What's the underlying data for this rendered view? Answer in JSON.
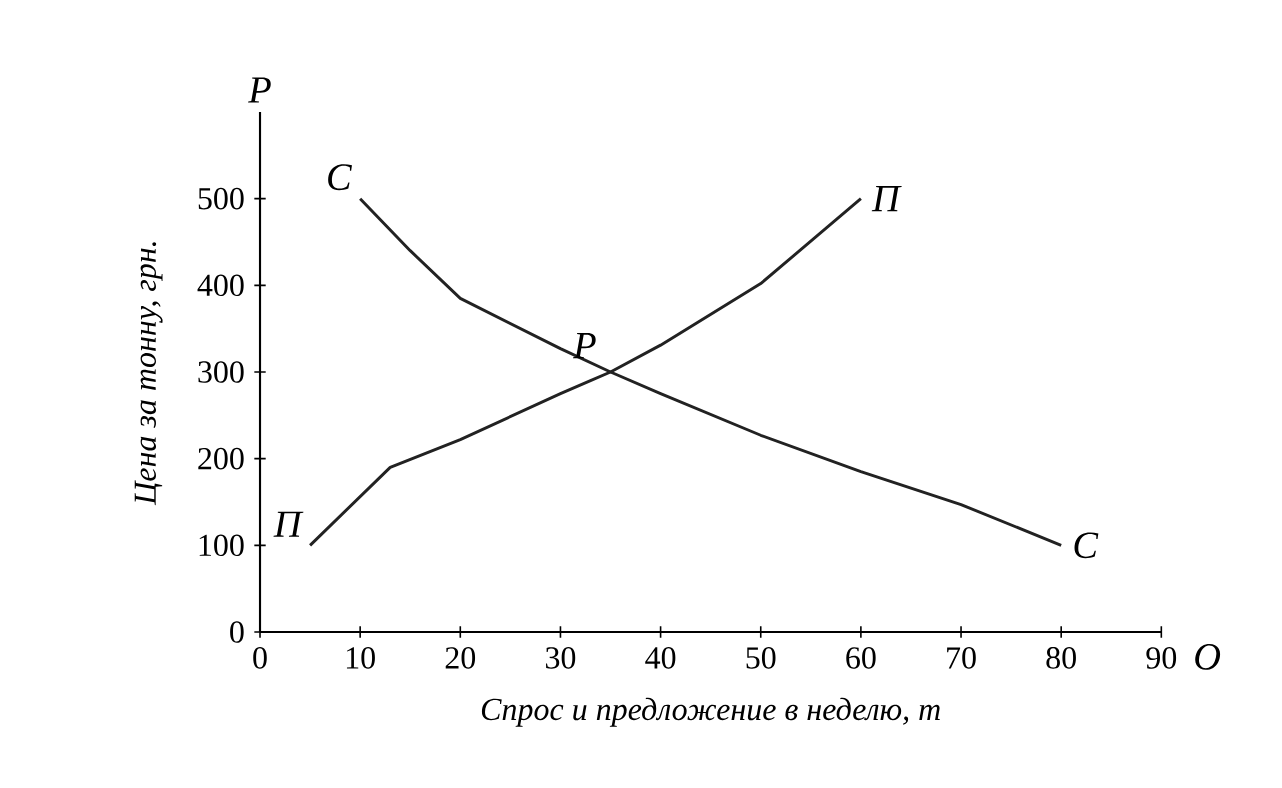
{
  "chart_data": {
    "type": "line",
    "xlabel": "Спрос и предложение в неделю, т",
    "ylabel": "Цена за тонну, грн.",
    "x": [
      10,
      15,
      20,
      30,
      35,
      40,
      50,
      60,
      70,
      80
    ],
    "series": [
      {
        "name": "С",
        "color": "#222222",
        "values": [
          500,
          440,
          385,
          327,
          300,
          275,
          227,
          185,
          147,
          100
        ]
      },
      {
        "name": "П",
        "color": "#222222",
        "x": [
          5,
          13,
          20,
          30,
          33,
          35,
          40,
          50,
          60
        ],
        "values": [
          100,
          190,
          222,
          275,
          290,
          300,
          331,
          402,
          500
        ]
      }
    ],
    "annotations": [
      "P",
      "O",
      {
        "text": "Р",
        "x": 35,
        "y": 300
      }
    ],
    "xlim": [
      0,
      90
    ],
    "ylim": [
      0,
      600
    ],
    "xticks": [
      0,
      10,
      20,
      30,
      40,
      50,
      60,
      70,
      80,
      90
    ],
    "yticks": [
      0,
      100,
      200,
      300,
      400,
      500
    ],
    "grid": false,
    "marker": "none",
    "line_style": "solid"
  }
}
